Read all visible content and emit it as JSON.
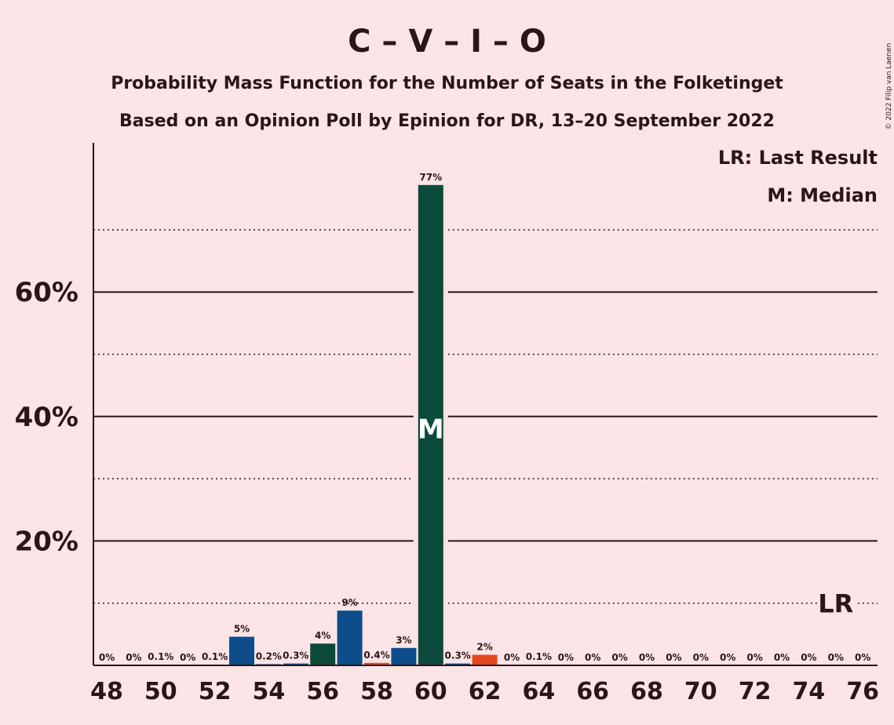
{
  "chart_data": {
    "type": "bar",
    "title": "C – V – I – O",
    "subtitle_lines": [
      "Probability Mass Function for the Number of Seats in the Folketinget",
      "Based on an Opinion Poll by Epinion for DR, 13–20 September 2022"
    ],
    "copyright": "© 2022 Filip van Laenen",
    "legend": [
      "LR: Last Result",
      "M: Median"
    ],
    "legend_position": "top-right",
    "ylim": [
      0,
      84
    ],
    "yticks": [
      {
        "value": 20,
        "label": "20%"
      },
      {
        "value": 40,
        "label": "40%"
      },
      {
        "value": 60,
        "label": "60%"
      }
    ],
    "solid_gridlines": [
      20,
      40,
      60
    ],
    "dotted_gridlines": [
      10,
      30,
      50,
      70
    ],
    "xticks": [
      48,
      50,
      52,
      54,
      56,
      58,
      60,
      62,
      64,
      66,
      68,
      70,
      72,
      74,
      76
    ],
    "x": [
      48,
      49,
      50,
      51,
      52,
      53,
      54,
      55,
      56,
      57,
      58,
      59,
      60,
      61,
      62,
      63,
      64,
      65,
      66,
      67,
      68,
      69,
      70,
      71,
      72,
      73,
      74,
      75,
      76
    ],
    "values": [
      0,
      0,
      0.1,
      0,
      0.1,
      4.6,
      0.2,
      0.3,
      3.5,
      8.8,
      0.4,
      2.8,
      77.2,
      0.3,
      1.7,
      0,
      0.1,
      0,
      0,
      0,
      0,
      0,
      0,
      0,
      0,
      0,
      0,
      0,
      0
    ],
    "labels": [
      "0%",
      "0%",
      "0.1%",
      "0%",
      "0.1%",
      "5%",
      "0.2%",
      "0.3%",
      "4%",
      "9%",
      "0.4%",
      "3%",
      "77%",
      "0.3%",
      "2%",
      "0%",
      "0.1%",
      "0%",
      "0%",
      "0%",
      "0%",
      "0%",
      "0%",
      "0%",
      "0%",
      "0%",
      "0%",
      "0%",
      "0%"
    ],
    "bar_colors": [
      "#0f4c8a",
      "#0f4c8a",
      "#0f4c8a",
      "#0f4c8a",
      "#0f4c8a",
      "#0f4c8a",
      "#0f4c8a",
      "#0f4c8a",
      "#0b4a3a",
      "#0f4c8a",
      "#e3491f",
      "#0f4c8a",
      "#0b4a3a",
      "#0f4c8a",
      "#e3491f",
      "#0f4c8a",
      "#0f4c8a",
      "#0f4c8a",
      "#0f4c8a",
      "#0f4c8a",
      "#0f4c8a",
      "#0f4c8a",
      "#0f4c8a",
      "#0f4c8a",
      "#0f4c8a",
      "#0f4c8a",
      "#0f4c8a",
      "#0f4c8a",
      "#0f4c8a"
    ],
    "median_seat": 60,
    "median_marker": "M",
    "last_result_seat": 75,
    "last_result_marker": "LR",
    "last_result_level": 10
  }
}
